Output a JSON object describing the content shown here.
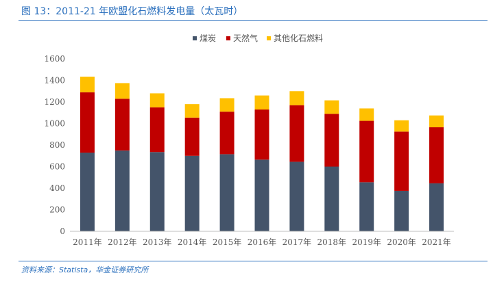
{
  "header": {
    "title": "图 13：2011-21 年欧盟化石燃料发电量（太瓦时）"
  },
  "footer": {
    "source": "资料来源：Statista，华金证券研究所"
  },
  "chart_data": {
    "type": "bar",
    "stacked": true,
    "categories": [
      "2011年",
      "2012年",
      "2013年",
      "2014年",
      "2015年",
      "2016年",
      "2017年",
      "2018年",
      "2019年",
      "2020年",
      "2021年"
    ],
    "series": [
      {
        "name": "煤炭",
        "color": "#44546a",
        "values": [
          730,
          750,
          735,
          700,
          715,
          665,
          645,
          600,
          455,
          375,
          445
        ]
      },
      {
        "name": "天然气",
        "color": "#c00000",
        "values": [
          560,
          480,
          415,
          355,
          395,
          465,
          525,
          490,
          570,
          550,
          520
        ]
      },
      {
        "name": "其他化石燃料",
        "color": "#ffc000",
        "values": [
          145,
          145,
          130,
          125,
          125,
          130,
          130,
          125,
          115,
          105,
          110
        ]
      }
    ],
    "ylim": [
      0,
      1600
    ],
    "yticks": [
      0,
      200,
      400,
      600,
      800,
      1000,
      1200,
      1400,
      1600
    ],
    "legend_position": "top-center",
    "grid": false
  }
}
